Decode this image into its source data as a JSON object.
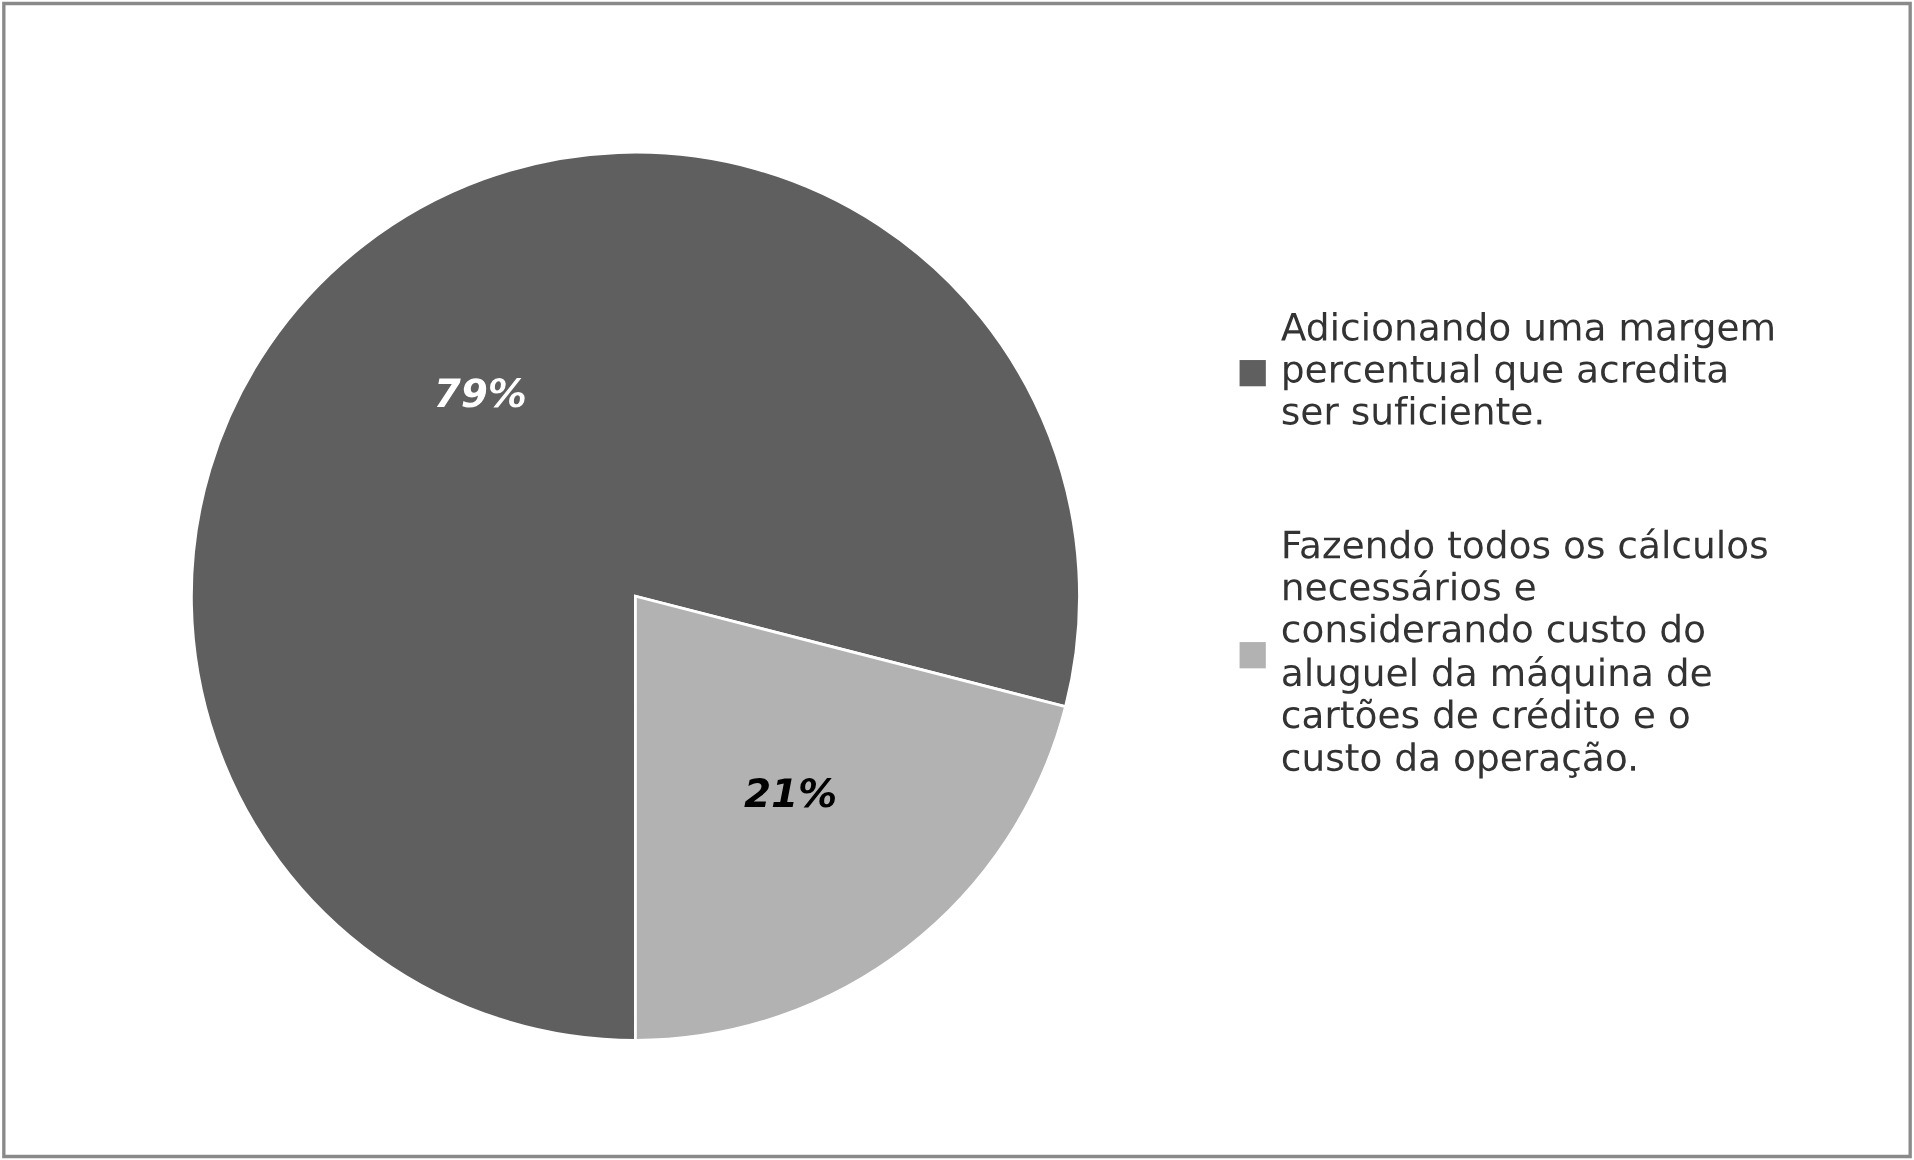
{
  "chart_data": {
    "type": "pie",
    "categories": [
      "Adicionando uma margem\npercentual que acredita\nser suficiente.",
      "Fazendo todos os cálculos\nnecessários e\nconsiderando custo do\naluguel da máquina de\ncartões de crédito e o\ncusto da operação."
    ],
    "values": [
      79,
      21
    ],
    "colors": [
      "#5f5f5f",
      "#b2b2b2"
    ],
    "value_labels": [
      "79%",
      "21%"
    ],
    "legend": "right"
  }
}
